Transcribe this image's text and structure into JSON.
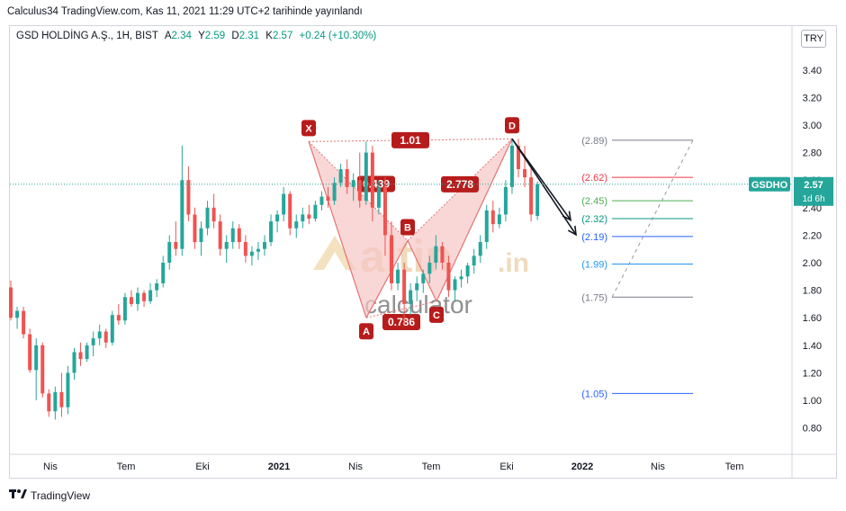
{
  "header": {
    "publish_line": "Calculus34 TradingView.com, Kas 11, 2021 11:29 UTC+2 tarihinde yayınlandı"
  },
  "legend": {
    "symbol": "GSD HOLDİNG A.Ş., 1H, BIST",
    "open_label": "A",
    "open": "2.34",
    "high_label": "Y",
    "high": "2.59",
    "low_label": "D",
    "low": "2.31",
    "close_label": "K",
    "close": "2.57",
    "change": "+0.24 (+10.30%)"
  },
  "currency": "TRY",
  "price_tag": {
    "ticker": "GSDHO",
    "price": "2.57",
    "countdown": "1d 6h"
  },
  "watermark": {
    "word": "altin",
    "suffix": ".in",
    "sub": "calculator"
  },
  "footer": {
    "brand": "TradingView",
    "logo": "tradingview-logo-icon"
  },
  "colors": {
    "up": "#26a69a",
    "down": "#ef5350",
    "pattern_fill": "#f7c6c6",
    "pattern_line": "#e57373",
    "label_bg": "#b71c1c",
    "price_tag": "#26a69a"
  },
  "chart_data": {
    "type": "candlestick",
    "y_ticks": [
      "3.40",
      "3.20",
      "3.00",
      "2.80",
      "2.60",
      "2.40",
      "2.20",
      "2.00",
      "1.80",
      "1.60",
      "1.40",
      "1.20",
      "1.00",
      "0.80"
    ],
    "ylim": [
      0.6,
      3.62
    ],
    "x_ticks": [
      {
        "label": "Nis",
        "bold": false
      },
      {
        "label": "Tem",
        "bold": false
      },
      {
        "label": "Eki",
        "bold": false
      },
      {
        "label": "2021",
        "bold": true
      },
      {
        "label": "Nis",
        "bold": false
      },
      {
        "label": "Tem",
        "bold": false
      },
      {
        "label": "Eki",
        "bold": false
      },
      {
        "label": "2022",
        "bold": true
      },
      {
        "label": "Nis",
        "bold": false
      },
      {
        "label": "Tem",
        "bold": false
      }
    ],
    "harmonic_pattern": {
      "points": [
        {
          "label": "X",
          "price": 2.88
        },
        {
          "label": "A",
          "price": 1.6
        },
        {
          "label": "B",
          "price": 2.16
        },
        {
          "label": "C",
          "price": 1.72
        },
        {
          "label": "D",
          "price": 2.9
        }
      ],
      "ratios": {
        "XB": "0.439",
        "AC": "0.786",
        "BD": "2.778",
        "XD": "1.01"
      }
    },
    "fib_levels": [
      {
        "label": "(2.89)",
        "value": 2.89,
        "color": "#787b86"
      },
      {
        "label": "(2.62)",
        "value": 2.62,
        "color": "#f23645"
      },
      {
        "label": "(2.45)",
        "value": 2.45,
        "color": "#4caf50"
      },
      {
        "label": "(2.32)",
        "value": 2.32,
        "color": "#089981"
      },
      {
        "label": "(2.19)",
        "value": 2.19,
        "color": "#2962ff"
      },
      {
        "label": "(1.99)",
        "value": 1.99,
        "color": "#2196f3"
      },
      {
        "label": "(1.75)",
        "value": 1.75,
        "color": "#787b86"
      },
      {
        "label": "(1.05)",
        "value": 1.05,
        "color": "#2962ff"
      }
    ],
    "last_price": 2.57,
    "candles": [
      [
        1.82,
        1.87,
        1.58,
        1.6
      ],
      [
        1.6,
        1.68,
        1.52,
        1.65
      ],
      [
        1.65,
        1.68,
        1.45,
        1.48
      ],
      [
        1.48,
        1.52,
        1.2,
        1.22
      ],
      [
        1.22,
        1.45,
        1.0,
        1.4
      ],
      [
        1.4,
        1.42,
        1.02,
        1.05
      ],
      [
        1.05,
        1.08,
        0.88,
        0.92
      ],
      [
        0.92,
        1.1,
        0.86,
        1.06
      ],
      [
        1.06,
        1.2,
        0.88,
        0.95
      ],
      [
        0.95,
        1.25,
        0.9,
        1.2
      ],
      [
        1.2,
        1.38,
        1.15,
        1.35
      ],
      [
        1.35,
        1.42,
        1.25,
        1.3
      ],
      [
        1.3,
        1.42,
        1.28,
        1.4
      ],
      [
        1.4,
        1.5,
        1.32,
        1.45
      ],
      [
        1.45,
        1.55,
        1.4,
        1.5
      ],
      [
        1.5,
        1.52,
        1.38,
        1.42
      ],
      [
        1.42,
        1.65,
        1.4,
        1.62
      ],
      [
        1.62,
        1.7,
        1.55,
        1.58
      ],
      [
        1.58,
        1.78,
        1.55,
        1.75
      ],
      [
        1.75,
        1.8,
        1.68,
        1.7
      ],
      [
        1.7,
        1.82,
        1.65,
        1.78
      ],
      [
        1.78,
        1.8,
        1.68,
        1.72
      ],
      [
        1.72,
        1.85,
        1.7,
        1.8
      ],
      [
        1.8,
        1.88,
        1.75,
        1.85
      ],
      [
        1.85,
        2.05,
        1.82,
        2.0
      ],
      [
        2.0,
        2.2,
        1.95,
        2.15
      ],
      [
        2.15,
        2.3,
        2.05,
        2.1
      ],
      [
        2.1,
        2.85,
        2.05,
        2.6
      ],
      [
        2.6,
        2.7,
        2.3,
        2.35
      ],
      [
        2.35,
        2.4,
        2.1,
        2.15
      ],
      [
        2.15,
        2.3,
        2.05,
        2.25
      ],
      [
        2.25,
        2.45,
        2.2,
        2.4
      ],
      [
        2.4,
        2.5,
        2.25,
        2.3
      ],
      [
        2.3,
        2.35,
        2.05,
        2.1
      ],
      [
        2.1,
        2.2,
        2.0,
        2.15
      ],
      [
        2.15,
        2.3,
        2.1,
        2.25
      ],
      [
        2.25,
        2.28,
        2.1,
        2.15
      ],
      [
        2.15,
        2.2,
        2.0,
        2.05
      ],
      [
        2.05,
        2.12,
        1.98,
        2.08
      ],
      [
        2.08,
        2.15,
        2.02,
        2.1
      ],
      [
        2.1,
        2.2,
        2.05,
        2.15
      ],
      [
        2.15,
        2.35,
        2.12,
        2.3
      ],
      [
        2.3,
        2.38,
        2.22,
        2.35
      ],
      [
        2.35,
        2.55,
        2.3,
        2.5
      ],
      [
        2.5,
        2.52,
        2.2,
        2.25
      ],
      [
        2.25,
        2.35,
        2.18,
        2.3
      ],
      [
        2.3,
        2.4,
        2.25,
        2.35
      ],
      [
        2.35,
        2.42,
        2.28,
        2.32
      ],
      [
        2.32,
        2.45,
        2.3,
        2.42
      ],
      [
        2.42,
        2.52,
        2.38,
        2.48
      ],
      [
        2.48,
        2.55,
        2.4,
        2.45
      ],
      [
        2.45,
        2.62,
        2.42,
        2.58
      ],
      [
        2.58,
        2.72,
        2.55,
        2.68
      ],
      [
        2.68,
        2.75,
        2.5,
        2.55
      ],
      [
        2.55,
        2.65,
        2.45,
        2.6
      ],
      [
        2.6,
        2.8,
        2.4,
        2.45
      ],
      [
        2.45,
        2.88,
        2.42,
        2.8
      ],
      [
        2.8,
        2.85,
        2.3,
        2.4
      ],
      [
        2.4,
        2.6,
        2.35,
        2.55
      ],
      [
        2.55,
        2.62,
        2.05,
        2.2
      ],
      [
        2.2,
        2.3,
        1.8,
        1.85
      ],
      [
        1.85,
        2.0,
        1.8,
        1.95
      ],
      [
        1.95,
        2.0,
        1.55,
        1.7
      ],
      [
        1.7,
        1.85,
        1.62,
        1.8
      ],
      [
        1.8,
        1.9,
        1.72,
        1.85
      ],
      [
        1.85,
        1.95,
        1.78,
        1.92
      ],
      [
        1.92,
        2.05,
        1.85,
        2.0
      ],
      [
        2.0,
        2.2,
        1.95,
        2.12
      ],
      [
        2.12,
        2.15,
        1.95,
        2.0
      ],
      [
        2.0,
        2.05,
        1.75,
        1.8
      ],
      [
        1.8,
        1.9,
        1.72,
        1.88
      ],
      [
        1.88,
        1.95,
        1.82,
        1.9
      ],
      [
        1.9,
        2.0,
        1.85,
        1.98
      ],
      [
        1.98,
        2.1,
        1.92,
        2.05
      ],
      [
        2.05,
        2.2,
        2.0,
        2.15
      ],
      [
        2.15,
        2.42,
        2.1,
        2.38
      ],
      [
        2.38,
        2.45,
        2.22,
        2.28
      ],
      [
        2.28,
        2.4,
        2.25,
        2.35
      ],
      [
        2.35,
        2.6,
        2.3,
        2.55
      ],
      [
        2.55,
        2.9,
        2.5,
        2.85
      ],
      [
        2.85,
        2.9,
        2.62,
        2.68
      ],
      [
        2.68,
        2.85,
        2.55,
        2.62
      ],
      [
        2.62,
        2.7,
        2.3,
        2.35
      ],
      [
        2.34,
        2.59,
        2.31,
        2.57
      ]
    ]
  }
}
